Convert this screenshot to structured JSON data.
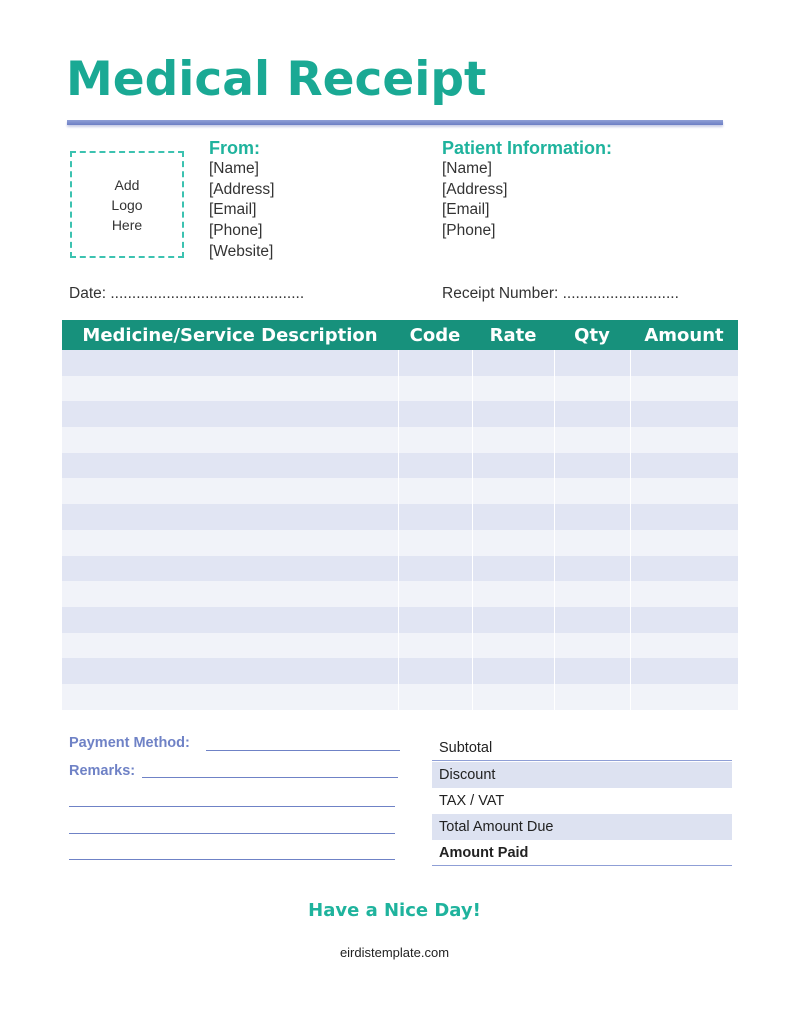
{
  "title": "Medical Receipt",
  "logo_placeholder": [
    "Add",
    "Logo",
    "Here"
  ],
  "from": {
    "heading": "From:",
    "lines": [
      "[Name]",
      "[Address]",
      "[Email]",
      "[Phone]",
      "[Website]"
    ]
  },
  "patient": {
    "heading": "Patient Information:",
    "lines": [
      "[Name]",
      "[Address]",
      "[Email]",
      "[Phone]"
    ]
  },
  "date_label": "Date: .............................................",
  "receipt_number_label": "Receipt Number: ...........................",
  "table": {
    "columns": [
      "Medicine/Service Description",
      "Code",
      "Rate",
      "Qty",
      "Amount"
    ],
    "rows": [
      [],
      [],
      [],
      [],
      [],
      [],
      [],
      [],
      [],
      [],
      [],
      [],
      [],
      []
    ]
  },
  "payment_method_label": "Payment Method:",
  "remarks_label": "Remarks:",
  "totals": [
    "Subtotal",
    "Discount",
    "TAX / VAT",
    "Total Amount Due",
    "Amount Paid"
  ],
  "footer_message": "Have a Nice Day!",
  "website": "eirdistemplate.com",
  "colors": {
    "accent": "#1aa994",
    "header": "#17917c",
    "secondary": "#6f82c6",
    "row_odd": "#e1e5f3",
    "row_even": "#f1f3f9"
  }
}
